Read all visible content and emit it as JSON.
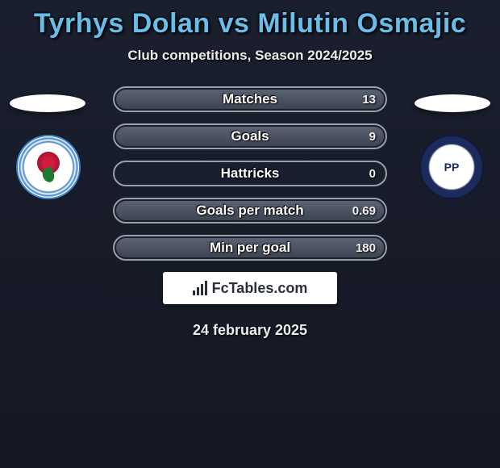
{
  "title": "Tyrhys Dolan vs Milutin Osmajic",
  "subtitle": "Club competitions, Season 2024/2025",
  "date": "24 february 2025",
  "brand": "FcTables.com",
  "colors": {
    "title_color": "#69bde8",
    "background_top": "#1a1f2e",
    "background_bottom": "#151824",
    "pill_border": "#9aa0a8",
    "fill_gradient_top": "#5a6373",
    "fill_gradient_bottom": "#3d4452",
    "text": "#ececec",
    "brand_bg": "#ffffff",
    "brand_text": "#2a2f3a"
  },
  "player_left": {
    "club_name": "Blackburn Rovers",
    "crest_colors": {
      "ring": "#3a7fc4",
      "rose": "#d41b3e",
      "leaf": "#1f7a2f",
      "base": "#ffffff"
    }
  },
  "player_right": {
    "club_name": "Preston North End",
    "crest_colors": {
      "outer": "#1a2b5c",
      "inner": "#ffffff"
    },
    "crest_text": "PP"
  },
  "stats": [
    {
      "label": "Matches",
      "right_val": "13",
      "right_fill_pct": 100
    },
    {
      "label": "Goals",
      "right_val": "9",
      "right_fill_pct": 100
    },
    {
      "label": "Hattricks",
      "right_val": "0",
      "right_fill_pct": 0
    },
    {
      "label": "Goals per match",
      "right_val": "0.69",
      "right_fill_pct": 100
    },
    {
      "label": "Min per goal",
      "right_val": "180",
      "right_fill_pct": 100
    }
  ],
  "chart_style": {
    "type": "horizontal-comparison-bars",
    "pill_height": 32,
    "pill_radius": 16,
    "pill_gap": 14,
    "label_fontsize": 17,
    "value_fontsize": 15,
    "font_weight": 700
  }
}
